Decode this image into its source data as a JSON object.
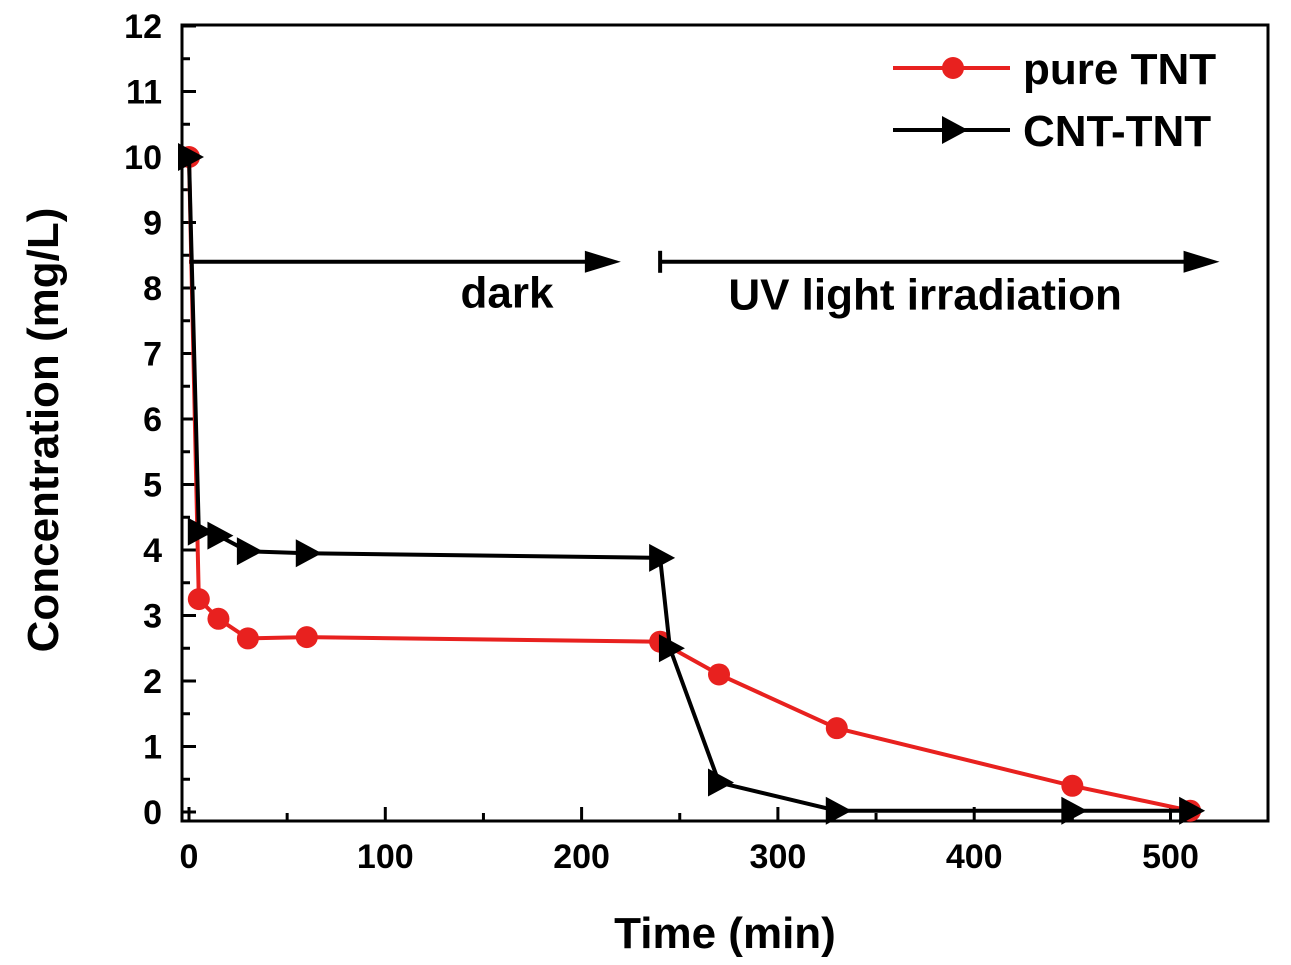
{
  "chart_data": {
    "type": "line",
    "title": "",
    "xlabel": "Time (min)",
    "ylabel": "Concentration (mg/L)",
    "xlim": [
      -5,
      550
    ],
    "ylim": [
      0,
      12
    ],
    "xticks": [
      0,
      100,
      200,
      300,
      400,
      500
    ],
    "yticks": [
      0,
      1,
      2,
      3,
      4,
      5,
      6,
      7,
      8,
      9,
      10,
      11,
      12
    ],
    "grid": false,
    "legend_position": "top-right",
    "series": [
      {
        "name": "pure TNT",
        "color": "#e8211f",
        "marker": "circle",
        "x": [
          0,
          5,
          15,
          30,
          60,
          240,
          270,
          330,
          450,
          510
        ],
        "y": [
          10.0,
          3.25,
          2.95,
          2.65,
          2.67,
          2.6,
          2.1,
          1.28,
          0.4,
          0.02
        ]
      },
      {
        "name": "CNT-TNT",
        "color": "#000000",
        "marker": "triangle-right",
        "x": [
          0,
          5,
          15,
          30,
          60,
          240,
          245,
          270,
          330,
          450,
          510
        ],
        "y": [
          10.0,
          4.28,
          4.22,
          3.98,
          3.95,
          3.88,
          2.5,
          0.45,
          0.02,
          0.02,
          0.02
        ]
      }
    ],
    "annotations": [
      {
        "text": "dark",
        "arrow_x": [
          0,
          220
        ],
        "arrow_y": 8.4,
        "label_x": 162,
        "label_y": 7.7
      },
      {
        "text": "UV light irradiation",
        "arrow_x": [
          240,
          525
        ],
        "arrow_y": 8.4,
        "label_x": 375,
        "label_y": 7.67
      }
    ]
  }
}
